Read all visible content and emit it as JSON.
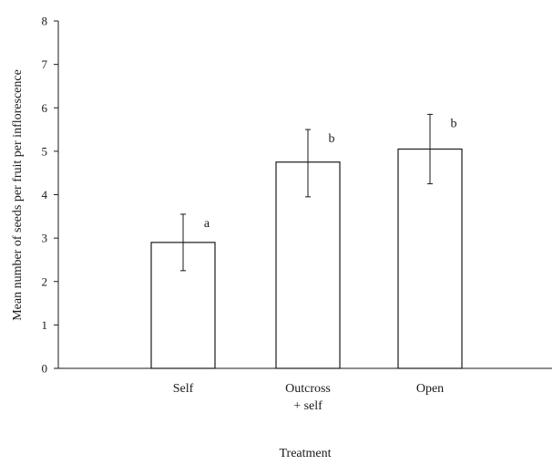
{
  "chart_data": {
    "type": "bar",
    "categories": [
      [
        "Self"
      ],
      [
        "Outcross",
        "+ self"
      ],
      [
        "Open"
      ]
    ],
    "values": [
      2.9,
      4.75,
      5.05
    ],
    "error_upper": [
      3.55,
      5.5,
      5.85
    ],
    "error_lower": [
      2.25,
      3.95,
      4.25
    ],
    "significance_labels": [
      "a",
      "b",
      "b"
    ],
    "title": "",
    "xlabel": "Treatment",
    "ylabel": "Mean number of seeds per fruit per inflorescence",
    "ylim": [
      0,
      8
    ],
    "yticks": [
      "0",
      "1",
      "2",
      "3",
      "4",
      "5",
      "6",
      "7",
      "8"
    ],
    "grid": false,
    "legend": "none",
    "colors": {
      "bar_fill": "#ffffff",
      "bar_stroke": "#1a1a1a",
      "axis": "#1a1a1a"
    }
  }
}
